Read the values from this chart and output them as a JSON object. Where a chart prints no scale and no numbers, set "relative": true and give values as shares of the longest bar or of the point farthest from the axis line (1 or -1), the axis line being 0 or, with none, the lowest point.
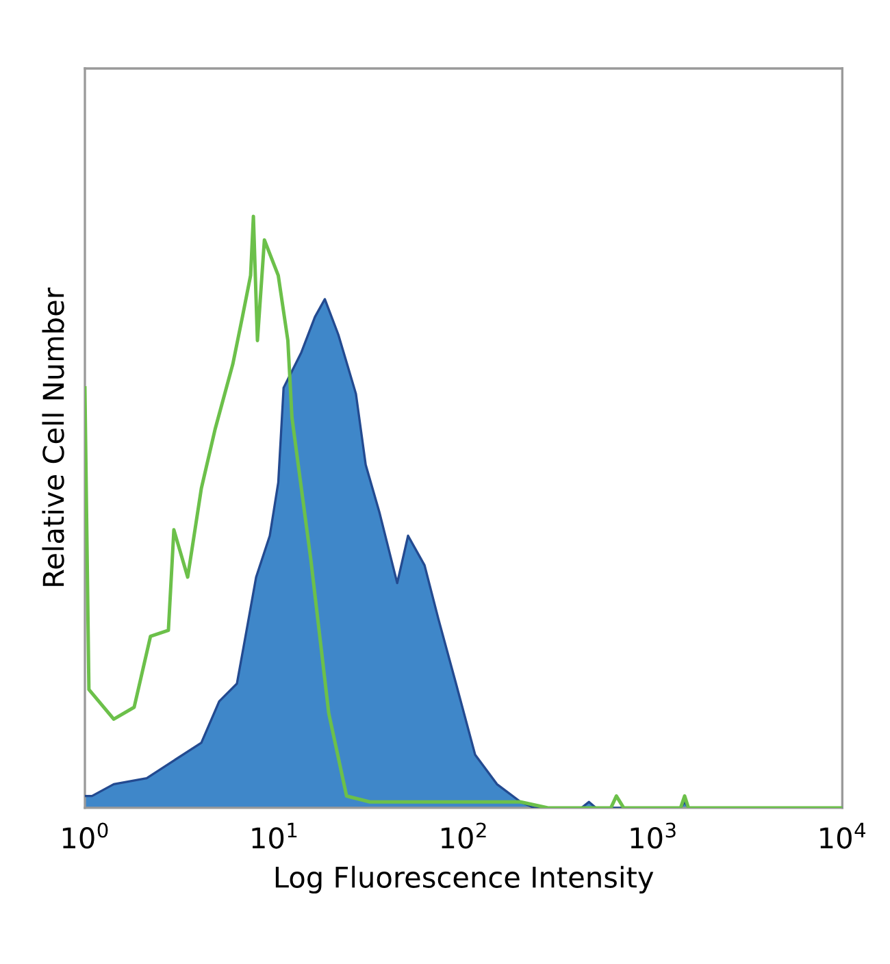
{
  "chart_data": {
    "type": "area",
    "xlabel": "Log Fluorescence Intensity",
    "ylabel": "Relative Cell Number",
    "relative": true,
    "log": "x",
    "xlim": [
      1,
      10000
    ],
    "xticks": [
      {
        "value": 1,
        "label": "10$^{0}$"
      },
      {
        "value": 10,
        "label": "10$^{1}$"
      },
      {
        "value": 100,
        "label": "10$^{2}$"
      },
      {
        "value": 1000,
        "label": "10$^{3}$"
      },
      {
        "value": 10000,
        "label": "10$^{4}$"
      }
    ],
    "tick_labels": "x",
    "grid": false,
    "series": [
      {
        "color": "#3f87c9",
        "x": [
          1,
          1.09,
          1.42,
          2.12,
          2.95,
          4.12,
          5.12,
          6.35,
          7.14,
          8.02,
          9.47,
          10.5,
          11.2,
          13.9,
          16.4,
          18.5,
          21.8,
          27.0,
          30.4,
          35.9,
          44.6,
          50.9,
          62.2,
          73.5,
          91.2,
          115,
          150,
          200,
          236,
          420,
          459,
          500,
          1400,
          1470,
          1540,
          10000
        ],
        "values": [
          0.02,
          0.02,
          0.04,
          0.05,
          0.08,
          0.11,
          0.18,
          0.21,
          0.3,
          0.39,
          0.46,
          0.55,
          0.71,
          0.77,
          0.83,
          0.86,
          0.8,
          0.7,
          0.58,
          0.5,
          0.38,
          0.46,
          0.41,
          0.32,
          0.21,
          0.09,
          0.04,
          0.01,
          0,
          0,
          0.01,
          0,
          0,
          0.01,
          0,
          0
        ]
      },
      {
        "type": "line",
        "color": "#6cc04a",
        "x": [
          1,
          1.05,
          1.42,
          1.82,
          2.22,
          2.76,
          2.95,
          3.49,
          4.12,
          4.87,
          6.04,
          6.79,
          7.5,
          7.76,
          8.15,
          8.87,
          10.5,
          11.8,
          12.4,
          15.6,
          19.4,
          24.1,
          32.0,
          73,
          200,
          279,
          600,
          641,
          700,
          1400,
          1470,
          1540,
          10000
        ],
        "values": [
          0.71,
          0.2,
          0.15,
          0.17,
          0.29,
          0.3,
          0.47,
          0.39,
          0.54,
          0.64,
          0.75,
          0.83,
          0.9,
          1.0,
          0.79,
          0.96,
          0.9,
          0.79,
          0.66,
          0.42,
          0.16,
          0.02,
          0.01,
          0.01,
          0.01,
          0,
          0,
          0.02,
          0,
          0,
          0.02,
          0,
          0
        ]
      }
    ]
  }
}
